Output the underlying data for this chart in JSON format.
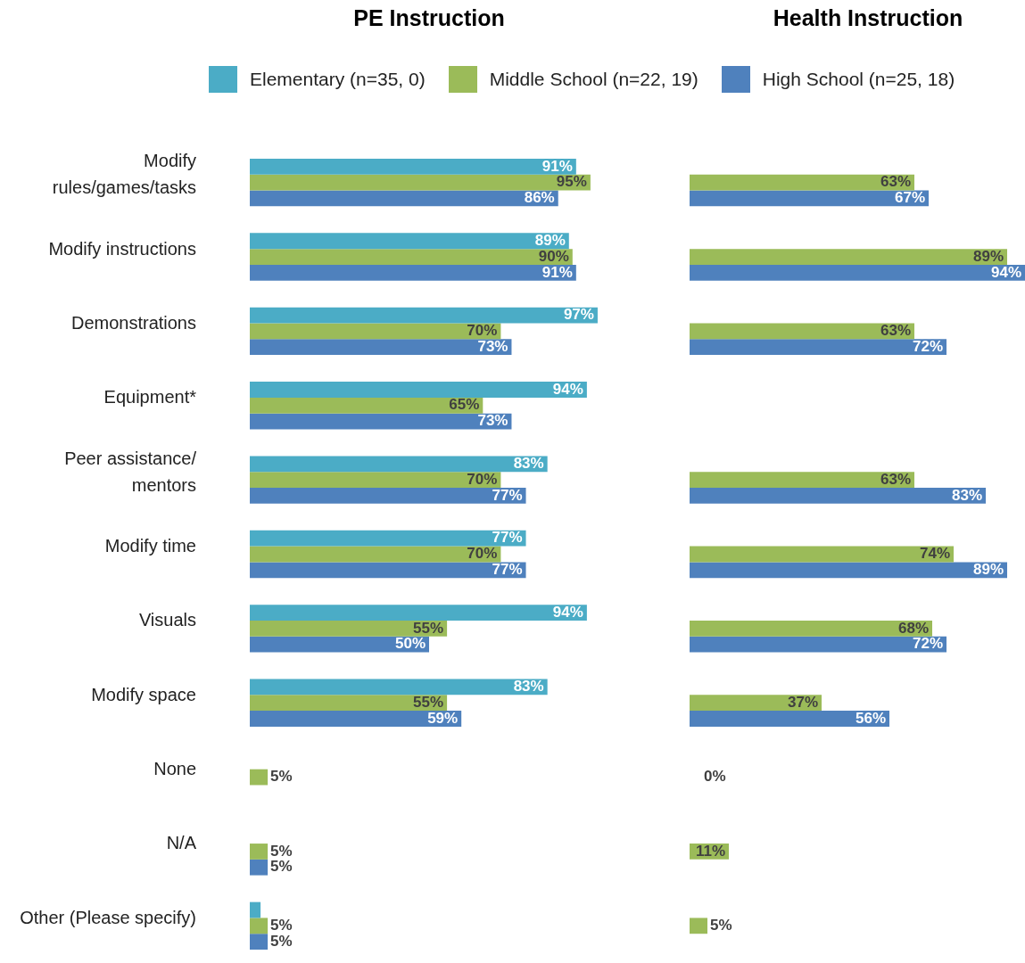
{
  "chart_data": [
    {
      "type": "bar",
      "title": "PE Instruction",
      "orientation": "horizontal",
      "legend": "top",
      "tick_labels": "y",
      "categories": [
        "Modify rules/games/tasks",
        "Modify instructions",
        "Demonstrations",
        "Equipment*",
        "Peer assistance/ mentors",
        "Modify time",
        "Visuals",
        "Modify space",
        "None",
        "N/A",
        "Other (Please specify)"
      ],
      "series": [
        {
          "name": "Elementary (n=35, 0)",
          "color": "#4bacc6",
          "values": [
            91,
            89,
            97,
            94,
            83,
            77,
            94,
            83,
            null,
            null,
            3
          ],
          "value_labels": [
            "91%",
            "89%",
            "97%",
            "94%",
            "83%",
            "77%",
            "94%",
            "83%",
            null,
            null,
            null
          ]
        },
        {
          "name": "Middle School (n=22, 19)",
          "color": "#9bbb59",
          "values": [
            95,
            90,
            70,
            65,
            70,
            70,
            55,
            55,
            5,
            5,
            5
          ],
          "value_labels": [
            "95%",
            "90%",
            "70%",
            "65%",
            "70%",
            "70%",
            "55%",
            "55%",
            "5%",
            "5%",
            "5%"
          ]
        },
        {
          "name": "High School (n=25, 18)",
          "color": "#4f81bd",
          "values": [
            86,
            91,
            73,
            73,
            77,
            77,
            50,
            59,
            null,
            5,
            5
          ],
          "value_labels": [
            "86%",
            "91%",
            "73%",
            "73%",
            "77%",
            "77%",
            "50%",
            "59%",
            null,
            "5%",
            "5%"
          ]
        }
      ]
    },
    {
      "type": "bar",
      "title": "Health Instruction",
      "orientation": "horizontal",
      "tick_labels": false,
      "categories": [
        null,
        null,
        null,
        null,
        null,
        null,
        null,
        null,
        null,
        null,
        null
      ],
      "series": [
        {
          "color": "#4bacc6",
          "values": [
            null,
            null,
            null,
            null,
            null,
            null,
            null,
            null,
            null,
            null,
            null
          ]
        },
        {
          "color": "#9bbb59",
          "values": [
            63,
            89,
            63,
            null,
            63,
            74,
            68,
            37,
            0,
            11,
            5
          ],
          "value_labels": [
            "63%",
            "89%",
            "63%",
            null,
            "63%",
            "74%",
            "68%",
            "37%",
            "0%",
            "11%",
            "5%"
          ]
        },
        {
          "color": "#4f81bd",
          "values": [
            67,
            94,
            72,
            null,
            83,
            89,
            72,
            56,
            null,
            null,
            null
          ],
          "value_labels": [
            "67%",
            "94%",
            "72%",
            null,
            "83%",
            "89%",
            "72%",
            "56%",
            null,
            null,
            null
          ]
        }
      ]
    }
  ]
}
